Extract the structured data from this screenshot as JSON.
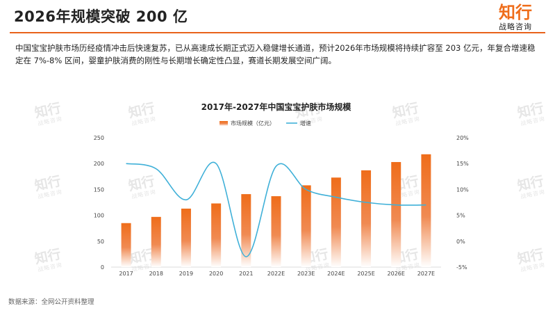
{
  "header": {
    "title": "2026年规模突破 200 亿",
    "logo_main": "知行",
    "logo_sub": "战略咨询"
  },
  "summary": "中国宝宝护肤市场历经疫情冲击后快速复苏，已从高速成长期正式迈入稳健增长通道，预计2026年市场规模将持续扩容至 203 亿元，年复合增速稳定在 7%-8% 区间，婴童护肤消费的刚性与长期增长确定性凸显，赛道长期发展空间广阔。",
  "watermark": {
    "main": "知行",
    "sub": "战略咨询"
  },
  "source": "数据来源：全网公开资料整理",
  "colors": {
    "accent": "#e8621a",
    "bar": "#ef6d1a",
    "line": "#3fb0d8"
  },
  "chart_data": {
    "type": "bar+line",
    "title": "2017年-2027年中国宝宝护肤市场规模",
    "categories": [
      "2017",
      "2018",
      "2019",
      "2020",
      "2021",
      "2022E",
      "2023E",
      "2024E",
      "2025E",
      "2026E",
      "2027E"
    ],
    "series": [
      {
        "name": "市场规模（亿元）",
        "type": "bar",
        "axis": "left",
        "values": [
          85,
          97,
          113,
          123,
          141,
          137,
          158,
          173,
          187,
          203,
          218
        ]
      },
      {
        "name": "增速",
        "type": "line",
        "axis": "right",
        "smooth": true,
        "values": [
          15,
          14,
          8,
          15,
          -3,
          14.5,
          10,
          8.5,
          7.5,
          7,
          7
        ]
      }
    ],
    "y_left": {
      "min": 0,
      "max": 250,
      "ticks": [
        "0",
        "50",
        "100",
        "150",
        "200",
        "250"
      ]
    },
    "y_right": {
      "min": -5,
      "max": 20,
      "ticks": [
        "-5%",
        "0%",
        "5%",
        "10%",
        "15%",
        "20%"
      ]
    },
    "legend_position": "top-center",
    "grid": false
  }
}
